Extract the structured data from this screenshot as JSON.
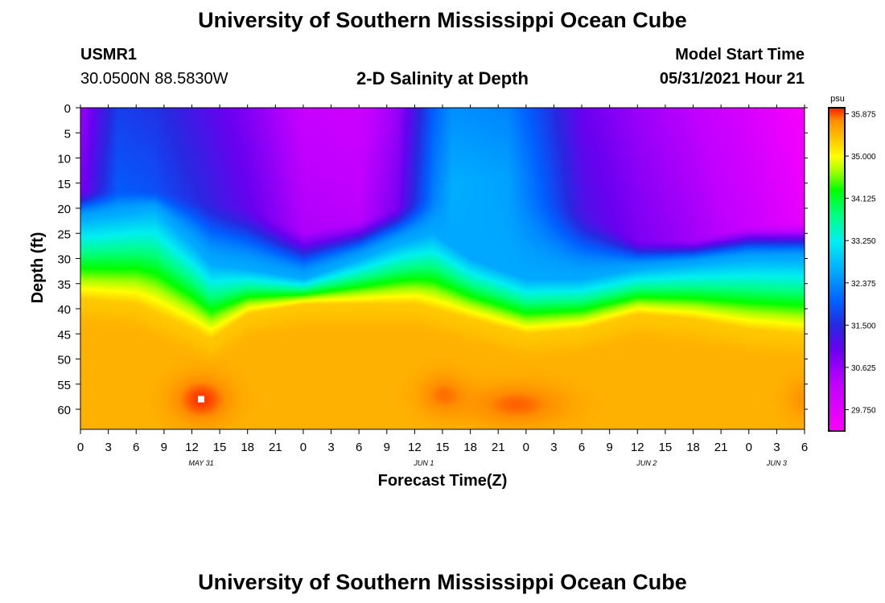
{
  "header": {
    "title": "University of Southern Mississippi Ocean Cube",
    "station_id": "USMR1",
    "coords": "30.0500N  88.5830W",
    "subtitle": "2-D Salinity at Depth",
    "model_label": "Model Start Time",
    "model_time": "05/31/2021 Hour 21"
  },
  "footer": {
    "title": "University of Southern Mississippi Ocean Cube"
  },
  "chart_data": {
    "type": "heatmap",
    "title": "2-D Salinity at Depth",
    "xlabel": "Forecast Time(Z)",
    "ylabel": "Depth (ft)",
    "colorbar_unit": "psu",
    "x_start": "2021-05-31 00Z",
    "x_range_hours": [
      0,
      78
    ],
    "x_tick_step_hours": 3,
    "x_tick_labels": [
      "0",
      "3",
      "6",
      "9",
      "12",
      "15",
      "18",
      "21",
      "0",
      "3",
      "6",
      "9",
      "12",
      "15",
      "18",
      "21",
      "0",
      "3",
      "6",
      "9",
      "12",
      "15",
      "18",
      "21",
      "0",
      "3",
      "6"
    ],
    "date_labels": [
      {
        "text": "MAY 31",
        "hour": 13
      },
      {
        "text": "JUN 1",
        "hour": 37
      },
      {
        "text": "JUN 2",
        "hour": 61
      },
      {
        "text": "JUN 3",
        "hour": 75
      }
    ],
    "y_range_ft": [
      0,
      64
    ],
    "y_inverted": true,
    "y_ticks": [
      0,
      5,
      10,
      15,
      20,
      25,
      30,
      35,
      40,
      45,
      50,
      55,
      60
    ],
    "colorbar_min": 29.31,
    "colorbar_max": 36.0,
    "colorbar_ticks": [
      "35.875",
      "35.000",
      "34.125",
      "33.250",
      "32.375",
      "31.500",
      "30.625",
      "29.750"
    ],
    "colorscale": [
      {
        "v": 29.31,
        "c": "#ff00ff"
      },
      {
        "v": 30.3,
        "c": "#c000ff"
      },
      {
        "v": 31.0,
        "c": "#6a00f0"
      },
      {
        "v": 31.5,
        "c": "#2828e0"
      },
      {
        "v": 32.0,
        "c": "#0060ff"
      },
      {
        "v": 32.6,
        "c": "#00a8ff"
      },
      {
        "v": 33.25,
        "c": "#00f0f0"
      },
      {
        "v": 33.8,
        "c": "#00ff80"
      },
      {
        "v": 34.3,
        "c": "#00ff00"
      },
      {
        "v": 34.7,
        "c": "#a8ff00"
      },
      {
        "v": 35.0,
        "c": "#ffff00"
      },
      {
        "v": 35.4,
        "c": "#ffc000"
      },
      {
        "v": 35.75,
        "c": "#ff8c00"
      },
      {
        "v": 36.0,
        "c": "#ff2000"
      }
    ],
    "halocline_top_ft": [
      {
        "hour": 0,
        "depth": 22
      },
      {
        "hour": 8,
        "depth": 20
      },
      {
        "hour": 12,
        "depth": 27
      },
      {
        "hour": 14,
        "depth": 31
      },
      {
        "hour": 18,
        "depth": 32
      },
      {
        "hour": 24,
        "depth": 34
      },
      {
        "hour": 30,
        "depth": 30
      },
      {
        "hour": 34,
        "depth": 27
      },
      {
        "hour": 38,
        "depth": 25
      },
      {
        "hour": 42,
        "depth": 30
      },
      {
        "hour": 48,
        "depth": 34
      },
      {
        "hour": 54,
        "depth": 34
      },
      {
        "hour": 60,
        "depth": 32
      },
      {
        "hour": 66,
        "depth": 31
      },
      {
        "hour": 72,
        "depth": 30
      },
      {
        "hour": 78,
        "depth": 30
      }
    ],
    "halocline_bottom_ft": [
      {
        "hour": 0,
        "depth": 38
      },
      {
        "hour": 6,
        "depth": 39
      },
      {
        "hour": 12,
        "depth": 44
      },
      {
        "hour": 14,
        "depth": 46
      },
      {
        "hour": 18,
        "depth": 41
      },
      {
        "hour": 24,
        "depth": 39
      },
      {
        "hour": 30,
        "depth": 39
      },
      {
        "hour": 36,
        "depth": 39
      },
      {
        "hour": 42,
        "depth": 42
      },
      {
        "hour": 48,
        "depth": 45
      },
      {
        "hour": 54,
        "depth": 44
      },
      {
        "hour": 60,
        "depth": 41
      },
      {
        "hour": 66,
        "depth": 42
      },
      {
        "hour": 72,
        "depth": 44
      },
      {
        "hour": 78,
        "depth": 45
      }
    ],
    "fresh_layer_bottom_ft": [
      {
        "hour": 0,
        "depth": 16
      },
      {
        "hour": 6,
        "depth": 16
      },
      {
        "hour": 12,
        "depth": 17
      },
      {
        "hour": 18,
        "depth": 19
      },
      {
        "hour": 24,
        "depth": 24
      },
      {
        "hour": 30,
        "depth": 22
      },
      {
        "hour": 36,
        "depth": 18
      },
      {
        "hour": 42,
        "depth": 14
      },
      {
        "hour": 48,
        "depth": 14
      },
      {
        "hour": 54,
        "depth": 20
      },
      {
        "hour": 60,
        "depth": 26
      },
      {
        "hour": 66,
        "depth": 26
      },
      {
        "hour": 72,
        "depth": 23
      },
      {
        "hour": 78,
        "depth": 22
      }
    ],
    "surface_salinity_psu": [
      {
        "hour": 0,
        "value": 30.6
      },
      {
        "hour": 2,
        "value": 31.2
      },
      {
        "hour": 4,
        "value": 31.7
      },
      {
        "hour": 8,
        "value": 31.6
      },
      {
        "hour": 12,
        "value": 31.3
      },
      {
        "hour": 18,
        "value": 30.8
      },
      {
        "hour": 24,
        "value": 30.2
      },
      {
        "hour": 30,
        "value": 30.1
      },
      {
        "hour": 34,
        "value": 30.6
      },
      {
        "hour": 38,
        "value": 32.0
      },
      {
        "hour": 40,
        "value": 32.4
      },
      {
        "hour": 46,
        "value": 32.3
      },
      {
        "hour": 50,
        "value": 31.7
      },
      {
        "hour": 54,
        "value": 31.0
      },
      {
        "hour": 60,
        "value": 30.6
      },
      {
        "hour": 66,
        "value": 30.3
      },
      {
        "hour": 72,
        "value": 29.9
      },
      {
        "hour": 78,
        "value": 29.4
      }
    ],
    "deep_salinity_psu": 35.5,
    "deep_maxima": [
      {
        "hour": 13,
        "depth": 58,
        "amp": 0.45,
        "hour_spread": 3.0,
        "depth_spread": 4.5
      },
      {
        "hour": 39,
        "depth": 57,
        "amp": 0.3,
        "hour_spread": 2.5,
        "depth_spread": 4.0
      },
      {
        "hour": 47,
        "depth": 59,
        "amp": 0.35,
        "hour_spread": 5.0,
        "depth_spread": 4.0
      },
      {
        "hour": 78,
        "depth": 58,
        "amp": 0.2,
        "hour_spread": 2.0,
        "depth_spread": 4.0
      }
    ],
    "observation_marker": {
      "hour": 13,
      "depth": 58
    }
  }
}
